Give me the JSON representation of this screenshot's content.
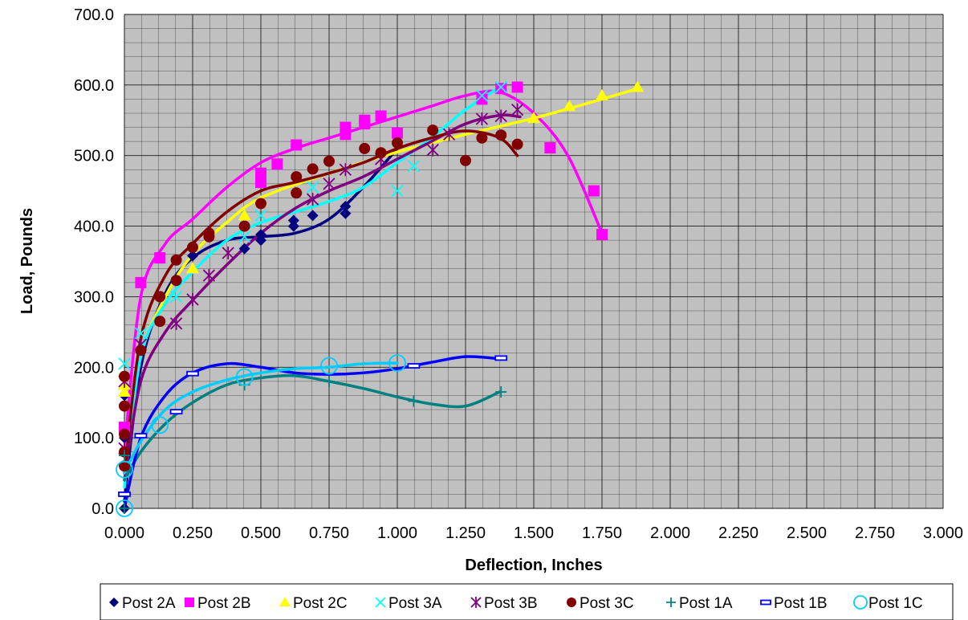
{
  "chart_data": {
    "type": "scatter",
    "title": "",
    "xlabel": "Deflection, Inches",
    "ylabel": "Load, Pounds",
    "xlim": [
      0,
      3
    ],
    "ylim": [
      0,
      700
    ],
    "x_ticks": [
      "0.000",
      "0.250",
      "0.500",
      "0.750",
      "1.000",
      "1.250",
      "1.500",
      "1.750",
      "2.000",
      "2.250",
      "2.500",
      "2.750",
      "3.000"
    ],
    "y_ticks": [
      "0.0",
      "100.0",
      "200.0",
      "300.0",
      "400.0",
      "500.0",
      "600.0",
      "700.0"
    ],
    "grid": true,
    "grid_minor_x": 0.0625,
    "grid_minor_y": 20,
    "plot_background": "#c0c0c0",
    "legend_position": "bottom",
    "trendlines": "polynomial",
    "series": [
      {
        "name": "Post 2A",
        "marker": "diamond",
        "color": "#000080",
        "x": [
          0,
          0,
          0,
          0.25,
          0.44,
          0.5,
          0.5,
          0.62,
          0.62,
          0.69,
          0.81,
          0.81
        ],
        "y": [
          0,
          100,
          160,
          358,
          368,
          380,
          388,
          400,
          408,
          415,
          418,
          428
        ],
        "trend": [
          [
            0,
            10
          ],
          [
            0.06,
            200
          ],
          [
            0.15,
            305
          ],
          [
            0.25,
            355
          ],
          [
            0.375,
            380
          ],
          [
            0.5,
            385
          ],
          [
            0.625,
            390
          ],
          [
            0.75,
            410
          ],
          [
            0.875,
            455
          ],
          [
            1.0,
            510
          ]
        ]
      },
      {
        "name": "Post 2B",
        "marker": "square",
        "color": "#ff00ff",
        "x": [
          0,
          0.06,
          0.13,
          0.5,
          0.5,
          0.56,
          0.63,
          0.81,
          0.81,
          0.88,
          0.88,
          0.94,
          1.0,
          1.31,
          1.38,
          1.44,
          1.56,
          1.72,
          1.75
        ],
        "y": [
          115,
          320,
          355,
          475,
          462,
          488,
          515,
          540,
          530,
          550,
          545,
          556,
          532,
          580,
          595,
          597,
          511,
          450,
          388
        ],
        "trend": [
          [
            0,
            80
          ],
          [
            0.06,
            300
          ],
          [
            0.15,
            375
          ],
          [
            0.25,
            410
          ],
          [
            0.375,
            455
          ],
          [
            0.5,
            490
          ],
          [
            0.625,
            510
          ],
          [
            0.75,
            525
          ],
          [
            0.875,
            540
          ],
          [
            1.0,
            555
          ],
          [
            1.125,
            570
          ],
          [
            1.25,
            585
          ],
          [
            1.375,
            590
          ],
          [
            1.5,
            560
          ],
          [
            1.625,
            500
          ],
          [
            1.75,
            390
          ]
        ]
      },
      {
        "name": "Post 2C",
        "marker": "triangle",
        "color": "#ffff00",
        "x": [
          0,
          0,
          0.25,
          0.44,
          0.5,
          1.5,
          1.63,
          1.75,
          1.88
        ],
        "y": [
          165,
          175,
          340,
          415,
          435,
          553,
          570,
          585,
          597
        ],
        "trend": [
          [
            0,
            60
          ],
          [
            0.06,
            215
          ],
          [
            0.15,
            300
          ],
          [
            0.25,
            360
          ],
          [
            0.375,
            405
          ],
          [
            0.5,
            440
          ],
          [
            0.75,
            475
          ],
          [
            1.0,
            505
          ],
          [
            1.25,
            530
          ],
          [
            1.5,
            553
          ],
          [
            1.75,
            580
          ],
          [
            1.88,
            595
          ]
        ]
      },
      {
        "name": "Post 3A",
        "marker": "x",
        "color": "#00ffff",
        "x": [
          0,
          0.06,
          0.19,
          0.44,
          0.5,
          0.69,
          1.0,
          1.06,
          1.31,
          1.38
        ],
        "y": [
          205,
          248,
          300,
          385,
          415,
          455,
          450,
          485,
          585,
          597
        ],
        "trend": [
          [
            0,
            30
          ],
          [
            0.06,
            215
          ],
          [
            0.15,
            290
          ],
          [
            0.25,
            335
          ],
          [
            0.375,
            380
          ],
          [
            0.5,
            405
          ],
          [
            0.625,
            420
          ],
          [
            0.75,
            435
          ],
          [
            0.875,
            455
          ],
          [
            1.0,
            490
          ],
          [
            1.125,
            525
          ],
          [
            1.25,
            565
          ],
          [
            1.375,
            597
          ]
        ]
      },
      {
        "name": "Post 3B",
        "marker": "star",
        "color": "#800080",
        "x": [
          0,
          0,
          0.06,
          0.19,
          0.25,
          0.31,
          0.38,
          0.69,
          0.75,
          0.81,
          0.94,
          1.13,
          1.19,
          1.31,
          1.38,
          1.44
        ],
        "y": [
          85,
          180,
          232,
          262,
          296,
          330,
          362,
          438,
          460,
          480,
          495,
          508,
          530,
          552,
          556,
          565
        ],
        "trend": [
          [
            0,
            40
          ],
          [
            0.06,
            180
          ],
          [
            0.15,
            250
          ],
          [
            0.25,
            295
          ],
          [
            0.375,
            345
          ],
          [
            0.5,
            390
          ],
          [
            0.625,
            425
          ],
          [
            0.75,
            450
          ],
          [
            0.875,
            470
          ],
          [
            1.0,
            495
          ],
          [
            1.125,
            520
          ],
          [
            1.25,
            545
          ],
          [
            1.375,
            557
          ],
          [
            1.45,
            555
          ]
        ]
      },
      {
        "name": "Post 3C",
        "marker": "circle",
        "color": "#800000",
        "x": [
          0,
          0,
          0,
          0,
          0,
          0.06,
          0.13,
          0.13,
          0.19,
          0.19,
          0.25,
          0.31,
          0.31,
          0.44,
          0.5,
          0.63,
          0.63,
          0.69,
          0.75,
          0.88,
          0.94,
          1.0,
          1.13,
          1.25,
          1.31,
          1.38,
          1.44
        ],
        "y": [
          60,
          80,
          105,
          145,
          187,
          224,
          265,
          300,
          323,
          352,
          370,
          385,
          390,
          400,
          432,
          447,
          470,
          481,
          492,
          510,
          504,
          518,
          536,
          493,
          525,
          529,
          516
        ],
        "trend": [
          [
            0,
            50
          ],
          [
            0.06,
            240
          ],
          [
            0.15,
            330
          ],
          [
            0.25,
            375
          ],
          [
            0.375,
            420
          ],
          [
            0.5,
            450
          ],
          [
            0.625,
            462
          ],
          [
            0.75,
            475
          ],
          [
            0.875,
            490
          ],
          [
            1.0,
            510
          ],
          [
            1.125,
            525
          ],
          [
            1.25,
            535
          ],
          [
            1.375,
            525
          ],
          [
            1.44,
            500
          ]
        ]
      },
      {
        "name": "Post 1A",
        "marker": "plus",
        "color": "#008080",
        "x": [
          0,
          0,
          0.44,
          0.75,
          1.06,
          1.38
        ],
        "y": [
          0,
          75,
          175,
          180,
          152,
          165
        ],
        "trend": [
          [
            0,
            40
          ],
          [
            0.06,
            80
          ],
          [
            0.15,
            120
          ],
          [
            0.25,
            150
          ],
          [
            0.375,
            175
          ],
          [
            0.5,
            185
          ],
          [
            0.625,
            188
          ],
          [
            0.75,
            180
          ],
          [
            0.875,
            170
          ],
          [
            1.0,
            158
          ],
          [
            1.125,
            148
          ],
          [
            1.25,
            145
          ],
          [
            1.375,
            165
          ]
        ]
      },
      {
        "name": "Post 1B",
        "marker": "dash",
        "color": "#0000ff",
        "x": [
          0,
          0.06,
          0.19,
          0.25,
          1.06,
          1.38
        ],
        "y": [
          20,
          103,
          137,
          191,
          202,
          213
        ],
        "trend": [
          [
            0,
            0
          ],
          [
            0.06,
            100
          ],
          [
            0.15,
            160
          ],
          [
            0.25,
            192
          ],
          [
            0.375,
            205
          ],
          [
            0.5,
            200
          ],
          [
            0.625,
            192
          ],
          [
            0.75,
            190
          ],
          [
            0.875,
            192
          ],
          [
            1.0,
            198
          ],
          [
            1.125,
            207
          ],
          [
            1.25,
            215
          ],
          [
            1.375,
            212
          ]
        ]
      },
      {
        "name": "Post 1C",
        "marker": "ring",
        "color": "#00ccff",
        "x": [
          0,
          0,
          0.13,
          0.44,
          0.75,
          1.0
        ],
        "y": [
          0,
          55,
          118,
          186,
          202,
          206
        ],
        "trend": [
          [
            0,
            50
          ],
          [
            0.06,
            95
          ],
          [
            0.15,
            140
          ],
          [
            0.25,
            165
          ],
          [
            0.375,
            182
          ],
          [
            0.5,
            192
          ],
          [
            0.625,
            198
          ],
          [
            0.75,
            200
          ],
          [
            0.875,
            205
          ],
          [
            1.0,
            206
          ]
        ]
      }
    ]
  }
}
